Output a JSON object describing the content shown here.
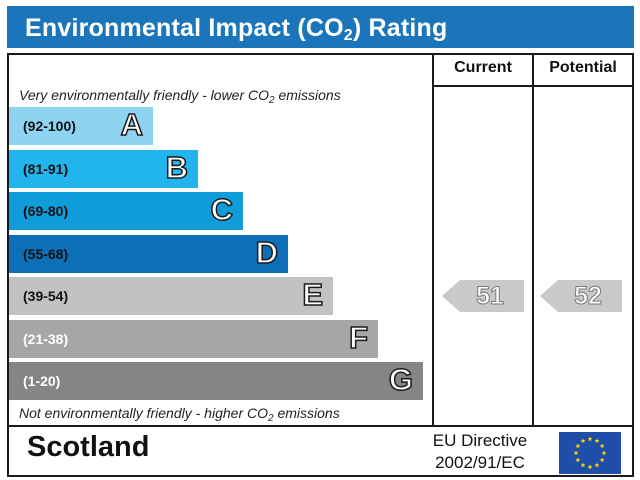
{
  "title": {
    "prefix": "Environmental Impact (CO",
    "subscript": "2",
    "suffix": ") Rating"
  },
  "columns": {
    "current": "Current",
    "potential": "Potential"
  },
  "notes": {
    "top_prefix": "Very environmentally friendly - lower CO",
    "top_subscript": "2",
    "top_suffix": " emissions",
    "bottom_prefix": "Not environmentally friendly - higher CO",
    "bottom_subscript": "2",
    "bottom_suffix": " emissions"
  },
  "chart_data": {
    "type": "bar",
    "title": "Environmental Impact (CO2) Rating",
    "bands": [
      {
        "range": "(92-100)",
        "letter": "A",
        "color": "#8fd3f3",
        "range_color": "#111111"
      },
      {
        "range": "(81-91)",
        "letter": "B",
        "color": "#22b4ec",
        "range_color": "#111111"
      },
      {
        "range": "(69-80)",
        "letter": "C",
        "color": "#109bd9",
        "range_color": "#111111"
      },
      {
        "range": "(55-68)",
        "letter": "D",
        "color": "#0b70b8",
        "range_color": "#111111"
      },
      {
        "range": "(39-54)",
        "letter": "E",
        "color": "#c2c2c2",
        "range_color": "#111111"
      },
      {
        "range": "(21-38)",
        "letter": "F",
        "color": "#a6a6a6",
        "range_color": "#ffffff"
      },
      {
        "range": "(1-20)",
        "letter": "G",
        "color": "#858585",
        "range_color": "#ffffff"
      }
    ],
    "series": [
      {
        "name": "Current",
        "value": 51,
        "band": "E"
      },
      {
        "name": "Potential",
        "value": 52,
        "band": "E"
      }
    ],
    "arrow_color": "#c9c9c9"
  },
  "footer": {
    "country": "Scotland",
    "directive_line1": "EU Directive",
    "directive_line2": "2002/91/EC",
    "flag_color": "#1e4ea8",
    "star_color": "#ffd400"
  }
}
